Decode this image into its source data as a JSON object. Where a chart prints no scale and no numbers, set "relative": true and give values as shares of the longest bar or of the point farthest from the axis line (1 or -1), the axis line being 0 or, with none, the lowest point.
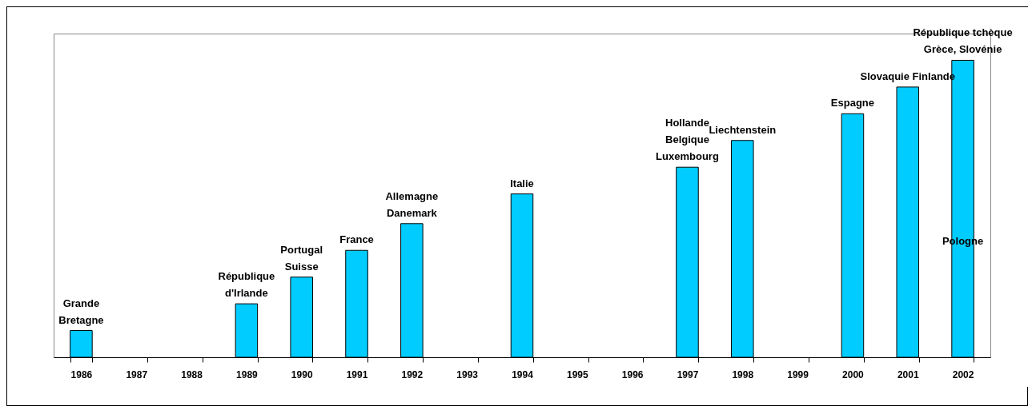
{
  "chart_data": {
    "type": "bar",
    "relative": true,
    "color": "#00ccff",
    "categories": [
      "1986",
      "1987",
      "1988",
      "1989",
      "1990",
      "1991",
      "1992",
      "1993",
      "1994",
      "1995",
      "1996",
      "1997",
      "1998",
      "1999",
      "2000",
      "2001",
      "2002"
    ],
    "values": [
      0.09,
      null,
      null,
      0.18,
      0.27,
      0.36,
      0.45,
      null,
      0.55,
      null,
      null,
      0.64,
      0.73,
      null,
      0.82,
      0.91,
      1
    ],
    "annotations": [
      {
        "text": "Grande\nBretagne",
        "x": "1986",
        "y": 0.09
      },
      {
        "text": "République\nd'Irlande",
        "x": "1989",
        "y": 0.18
      },
      {
        "text": "Portugal\nSuisse",
        "x": "1990",
        "y": 0.27
      },
      {
        "text": "France",
        "x": "1991",
        "y": 0.36
      },
      {
        "text": "Allemagne\nDanemark",
        "x": "1992",
        "y": 0.45
      },
      {
        "text": "Italie",
        "x": "1994",
        "y": 0.55
      },
      {
        "text": "Hollande\nBelgique\nLuxembourg",
        "x": "1997",
        "y": 0.64
      },
      {
        "text": "Liechtenstein",
        "x": "1998",
        "y": 0.73
      },
      {
        "text": "Espagne",
        "x": "2000",
        "y": 0.82
      },
      {
        "text": "Slovaquie Finlande",
        "x": "2001",
        "y": 0.91
      },
      {
        "text": "République tchèque\nGrèce, Slovénie",
        "x": "2002",
        "y": 1
      },
      "Pologne"
    ]
  }
}
